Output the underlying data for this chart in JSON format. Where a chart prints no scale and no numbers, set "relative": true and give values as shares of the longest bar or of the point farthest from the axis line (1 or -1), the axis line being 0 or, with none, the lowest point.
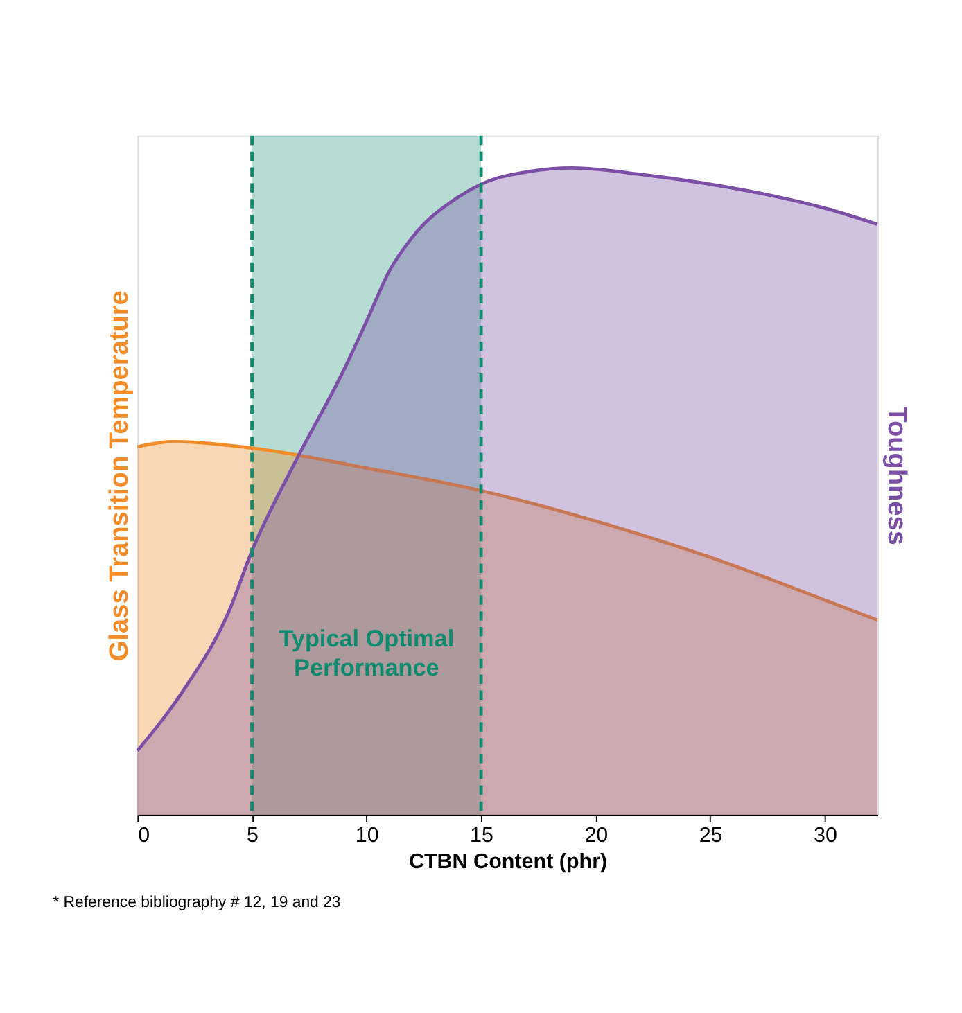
{
  "chart_data": {
    "type": "area",
    "relative": true,
    "xlabel": "CTBN Content (phr)",
    "ylabel": "Glass Transition Temperature",
    "y2label": "Toughness",
    "xlim": [
      0,
      32.3
    ],
    "xticks": [
      0,
      5,
      10,
      15,
      20,
      25,
      30
    ],
    "series": [
      {
        "color": "#f28c28",
        "x": [
          0,
          1.5,
          5,
          10,
          15,
          20,
          25,
          30,
          32.3
        ],
        "values": [
          0.569,
          0.577,
          0.567,
          0.536,
          0.501,
          0.454,
          0.398,
          0.332,
          0.301
        ]
      },
      {
        "color": "#7b4fa5",
        "x": [
          0,
          2,
          4,
          5,
          7,
          9,
          10,
          11,
          12,
          14,
          15,
          17,
          19,
          22,
          25,
          28,
          30,
          32.3
        ],
        "values": [
          0.099,
          0.192,
          0.315,
          0.408,
          0.553,
          0.687,
          0.763,
          0.841,
          0.893,
          0.955,
          0.975,
          0.994,
          1,
          0.99,
          0.975,
          0.955,
          0.938,
          0.913
        ]
      }
    ],
    "bands": [
      {
        "axis": "x",
        "from": 5,
        "to": 15,
        "label": "Typical Optimal Performance",
        "color": "#0e8a6e"
      }
    ],
    "annotations": [
      "* Reference bibliography # 12, 19 and 23"
    ]
  }
}
